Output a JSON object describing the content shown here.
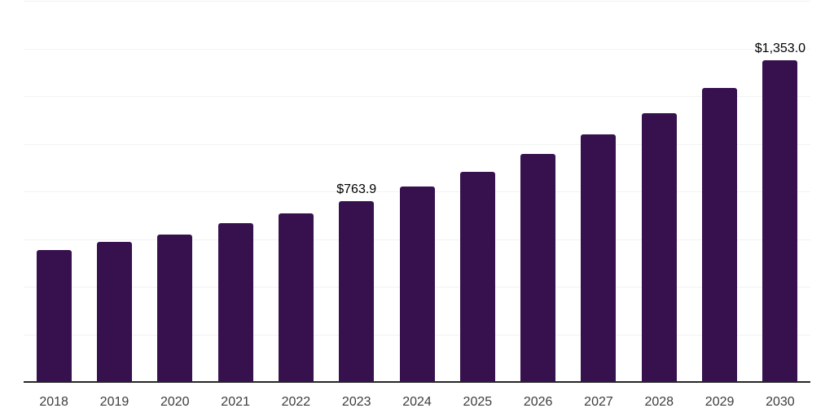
{
  "chart_data": {
    "type": "bar",
    "title": "",
    "xlabel": "",
    "ylabel": "",
    "categories": [
      "2018",
      "2019",
      "2020",
      "2021",
      "2022",
      "2023",
      "2024",
      "2025",
      "2026",
      "2027",
      "2028",
      "2029",
      "2030"
    ],
    "values": [
      559,
      593,
      622,
      670,
      711,
      763.9,
      824,
      885,
      961,
      1043,
      1132,
      1238,
      1353.0
    ],
    "point_labels": [
      "",
      "",
      "",
      "",
      "",
      "$763.9",
      "",
      "",
      "",
      "",
      "",
      "",
      "$1,353.0"
    ],
    "ylim": [
      0,
      1600
    ],
    "grid_step": 200,
    "grid": "horizontal-only",
    "legend_position": "none",
    "y_tick_labels_visible": false,
    "colors": {
      "bar": "#36114e",
      "axis_line": "#262626",
      "gridline": "#f2f2f2",
      "tick_label": "#3d3d3d",
      "data_label": "#000000",
      "background": "#ffffff"
    }
  }
}
